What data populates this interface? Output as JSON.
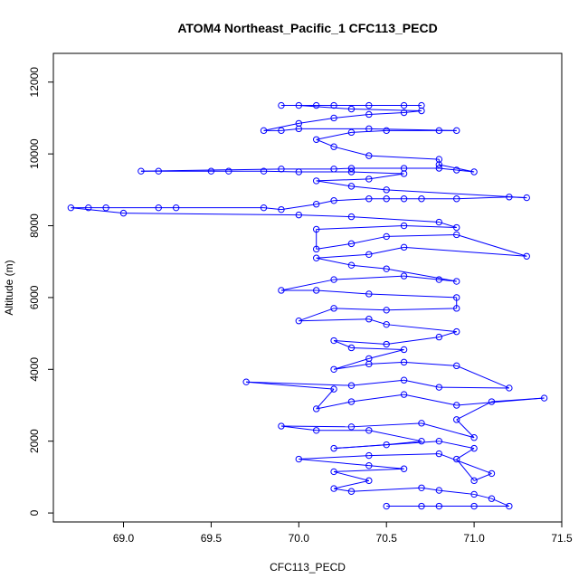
{
  "chart_data": {
    "type": "line",
    "title": "ATOM4 Northeast_Pacific_1 CFC113_PECD",
    "xlabel": "CFC113_PECD",
    "ylabel": "Altitude (m)",
    "xlim": [
      68.6,
      71.5
    ],
    "ylim": [
      -250,
      12800
    ],
    "x_ticks": [
      "69.0",
      "69.5",
      "70.0",
      "70.5",
      "71.0",
      "71.5"
    ],
    "y_ticks": [
      "0",
      "2000",
      "4000",
      "6000",
      "8000",
      "10000",
      "12000"
    ],
    "grid": false,
    "legend": "none",
    "series_color": "#0000ff",
    "marker": "open-circle",
    "series": [
      {
        "name": "",
        "points": [
          [
            70.5,
            190
          ],
          [
            70.7,
            190
          ],
          [
            70.8,
            190
          ],
          [
            71.0,
            190
          ],
          [
            71.2,
            190
          ],
          [
            71.1,
            400
          ],
          [
            71.0,
            520
          ],
          [
            70.8,
            630
          ],
          [
            70.7,
            700
          ],
          [
            70.3,
            600
          ],
          [
            70.2,
            680
          ],
          [
            70.4,
            900
          ],
          [
            70.2,
            1150
          ],
          [
            70.6,
            1230
          ],
          [
            70.4,
            1320
          ],
          [
            70.0,
            1500
          ],
          [
            70.4,
            1600
          ],
          [
            70.8,
            1650
          ],
          [
            71.1,
            1100
          ],
          [
            71.0,
            900
          ],
          [
            70.9,
            1500
          ],
          [
            71.0,
            1800
          ],
          [
            70.8,
            2000
          ],
          [
            70.2,
            1800
          ],
          [
            70.5,
            1900
          ],
          [
            70.7,
            2000
          ],
          [
            70.4,
            2300
          ],
          [
            70.1,
            2300
          ],
          [
            69.9,
            2420
          ],
          [
            70.3,
            2400
          ],
          [
            70.7,
            2500
          ],
          [
            71.0,
            2100
          ],
          [
            70.9,
            2600
          ],
          [
            71.1,
            3100
          ],
          [
            71.4,
            3200
          ],
          [
            70.9,
            3000
          ],
          [
            70.6,
            3300
          ],
          [
            70.3,
            3100
          ],
          [
            70.1,
            2900
          ],
          [
            70.2,
            3450
          ],
          [
            69.7,
            3650
          ],
          [
            70.3,
            3550
          ],
          [
            70.6,
            3700
          ],
          [
            70.8,
            3500
          ],
          [
            71.2,
            3480
          ],
          [
            70.9,
            4100
          ],
          [
            70.6,
            4200
          ],
          [
            70.4,
            4150
          ],
          [
            70.2,
            4000
          ],
          [
            70.4,
            4300
          ],
          [
            70.6,
            4550
          ],
          [
            70.3,
            4600
          ],
          [
            70.2,
            4800
          ],
          [
            70.5,
            4700
          ],
          [
            70.8,
            4900
          ],
          [
            70.9,
            5050
          ],
          [
            70.5,
            5250
          ],
          [
            70.4,
            5400
          ],
          [
            70.0,
            5350
          ],
          [
            70.2,
            5700
          ],
          [
            70.5,
            5650
          ],
          [
            70.9,
            5700
          ],
          [
            70.9,
            6000
          ],
          [
            70.4,
            6100
          ],
          [
            70.1,
            6200
          ],
          [
            69.9,
            6200
          ],
          [
            70.2,
            6500
          ],
          [
            70.6,
            6600
          ],
          [
            70.8,
            6500
          ],
          [
            70.9,
            6450
          ],
          [
            70.5,
            6800
          ],
          [
            70.3,
            6900
          ],
          [
            70.1,
            7100
          ],
          [
            70.4,
            7200
          ],
          [
            70.6,
            7400
          ],
          [
            71.3,
            7150
          ],
          [
            70.9,
            7750
          ],
          [
            70.5,
            7700
          ],
          [
            70.3,
            7500
          ],
          [
            70.1,
            7350
          ],
          [
            70.1,
            7900
          ],
          [
            70.6,
            8000
          ],
          [
            70.9,
            7950
          ],
          [
            70.8,
            8100
          ],
          [
            70.3,
            8250
          ],
          [
            70.0,
            8300
          ],
          [
            69.0,
            8350
          ],
          [
            68.7,
            8500
          ],
          [
            68.8,
            8500
          ],
          [
            68.9,
            8500
          ],
          [
            69.2,
            8500
          ],
          [
            69.3,
            8500
          ],
          [
            69.8,
            8500
          ],
          [
            69.9,
            8450
          ],
          [
            70.1,
            8600
          ],
          [
            70.2,
            8700
          ],
          [
            70.4,
            8750
          ],
          [
            70.5,
            8750
          ],
          [
            70.6,
            8750
          ],
          [
            70.7,
            8750
          ],
          [
            70.9,
            8750
          ],
          [
            71.2,
            8800
          ],
          [
            71.3,
            8780
          ],
          [
            70.5,
            9000
          ],
          [
            70.3,
            9100
          ],
          [
            70.1,
            9250
          ],
          [
            70.4,
            9300
          ],
          [
            70.6,
            9450
          ],
          [
            70.3,
            9500
          ],
          [
            70.0,
            9500
          ],
          [
            69.8,
            9520
          ],
          [
            69.6,
            9520
          ],
          [
            69.5,
            9520
          ],
          [
            69.2,
            9520
          ],
          [
            69.1,
            9520
          ],
          [
            69.9,
            9580
          ],
          [
            70.2,
            9580
          ],
          [
            70.3,
            9600
          ],
          [
            70.6,
            9600
          ],
          [
            70.8,
            9600
          ],
          [
            70.9,
            9550
          ],
          [
            71.0,
            9500
          ],
          [
            70.8,
            9700
          ],
          [
            70.8,
            9850
          ],
          [
            70.4,
            9950
          ],
          [
            70.2,
            10200
          ],
          [
            70.1,
            10400
          ],
          [
            70.3,
            10600
          ],
          [
            70.5,
            10650
          ],
          [
            70.8,
            10650
          ],
          [
            70.9,
            10650
          ],
          [
            70.4,
            10700
          ],
          [
            70.0,
            10700
          ],
          [
            69.9,
            10650
          ],
          [
            69.8,
            10650
          ],
          [
            70.0,
            10850
          ],
          [
            70.2,
            11000
          ],
          [
            70.4,
            11100
          ],
          [
            70.6,
            11150
          ],
          [
            70.7,
            11200
          ],
          [
            70.3,
            11250
          ],
          [
            70.0,
            11350
          ],
          [
            69.9,
            11350
          ],
          [
            70.1,
            11350
          ],
          [
            70.2,
            11350
          ],
          [
            70.4,
            11350
          ],
          [
            70.6,
            11350
          ],
          [
            70.7,
            11350
          ]
        ]
      }
    ]
  }
}
